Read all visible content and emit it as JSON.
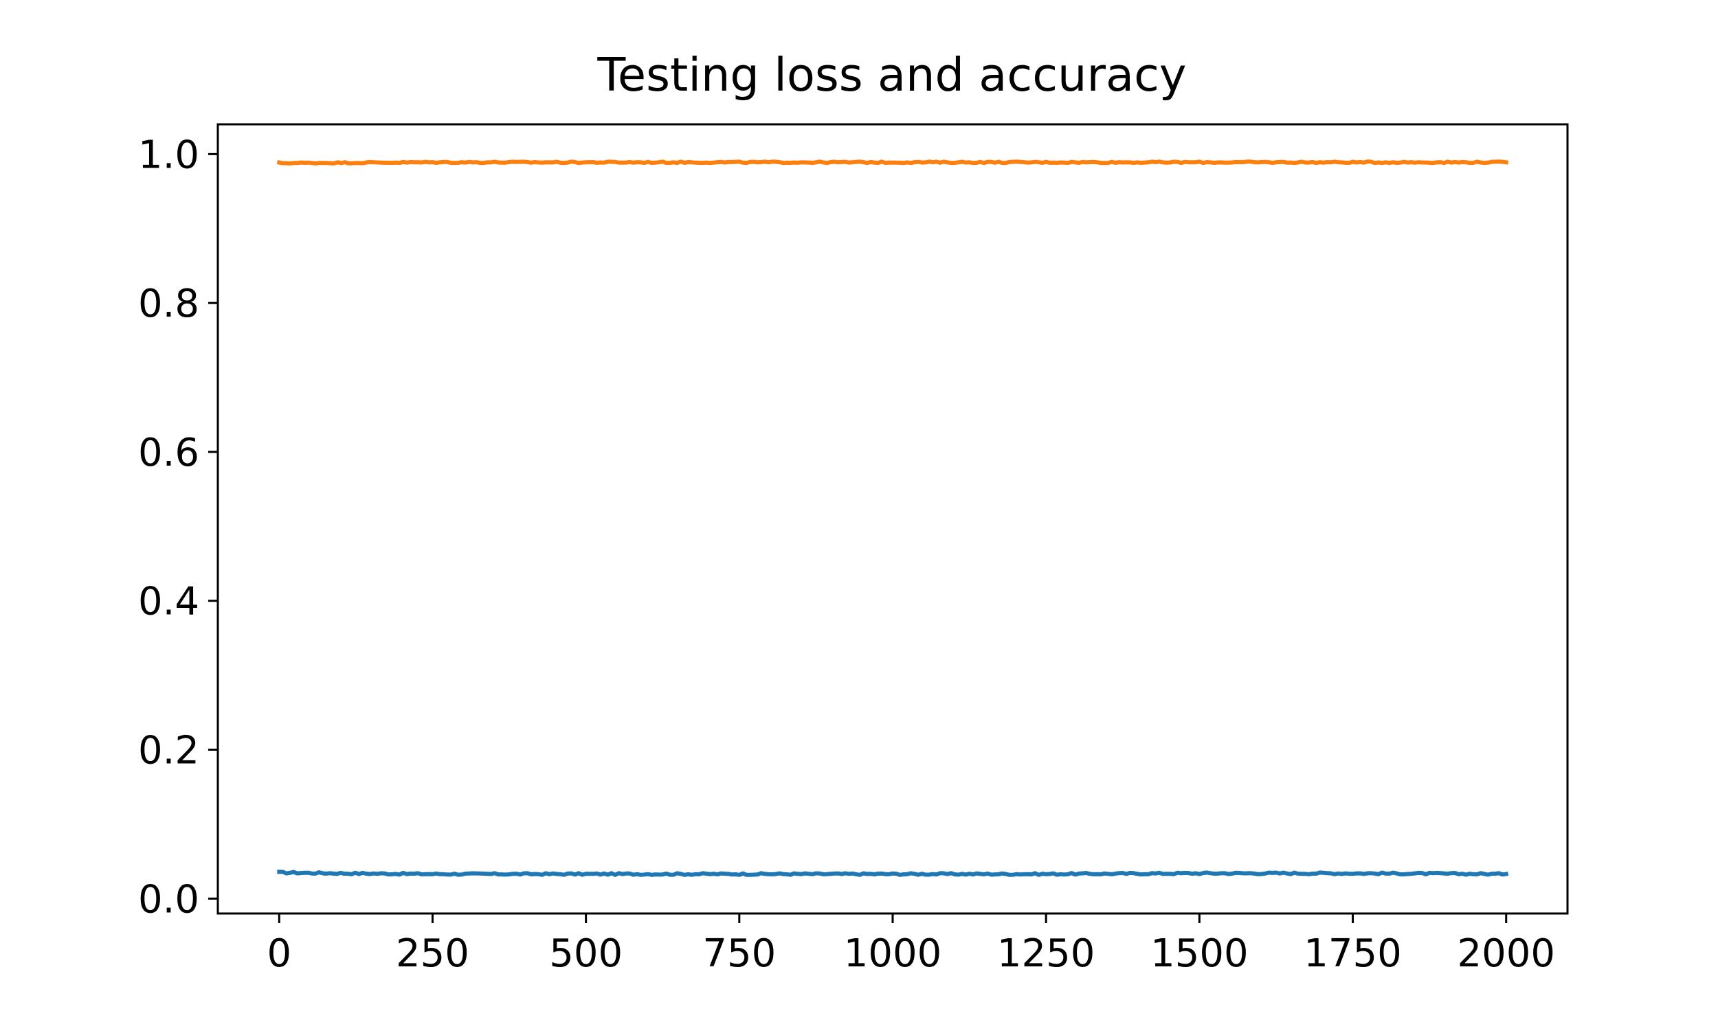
{
  "chart_data": {
    "type": "line",
    "title": "Testing loss and accuracy",
    "xlabel": "",
    "ylabel": "",
    "xlim": [
      -100,
      2100
    ],
    "ylim": [
      -0.02,
      1.04
    ],
    "x_ticks": [
      0,
      250,
      500,
      750,
      1000,
      1250,
      1500,
      1750,
      2000
    ],
    "x_tick_labels": [
      "0",
      "250",
      "500",
      "750",
      "1000",
      "1250",
      "1500",
      "1750",
      "2000"
    ],
    "y_ticks": [
      0.0,
      0.2,
      0.4,
      0.6,
      0.8,
      1.0
    ],
    "y_tick_labels": [
      "0.0",
      "0.2",
      "0.4",
      "0.6",
      "0.8",
      "1.0"
    ],
    "grid": false,
    "legend": "none",
    "series": [
      {
        "color": "#1f77b4",
        "x": [
          0,
          100,
          250,
          500,
          750,
          1000,
          1250,
          1500,
          1750,
          2000
        ],
        "values": [
          0.035,
          0.034,
          0.033,
          0.033,
          0.033,
          0.033,
          0.033,
          0.034,
          0.034,
          0.033
        ]
      },
      {
        "color": "#ff7f0e",
        "x": [
          0,
          250,
          500,
          750,
          1000,
          1250,
          1500,
          1750,
          2000
        ],
        "values": [
          0.988,
          0.989,
          0.989,
          0.989,
          0.989,
          0.989,
          0.989,
          0.989,
          0.989
        ]
      }
    ]
  }
}
